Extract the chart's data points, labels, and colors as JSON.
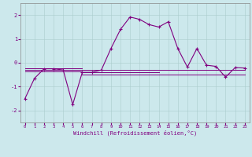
{
  "xlabel": "Windchill (Refroidissement éolien,°C)",
  "background_color": "#cce8ec",
  "line_color": "#800080",
  "grid_color": "#aacccc",
  "xlim": [
    -0.5,
    23.5
  ],
  "ylim": [
    -2.5,
    2.5
  ],
  "yticks": [
    -2,
    -1,
    0,
    1,
    2
  ],
  "xticks": [
    0,
    1,
    2,
    3,
    4,
    5,
    6,
    7,
    8,
    9,
    10,
    11,
    12,
    13,
    14,
    15,
    16,
    17,
    18,
    19,
    20,
    21,
    22,
    23
  ],
  "main_x": [
    0,
    1,
    2,
    3,
    4,
    5,
    6,
    7,
    8,
    9,
    10,
    11,
    12,
    13,
    14,
    15,
    16,
    17,
    18,
    19,
    20,
    21,
    22,
    23
  ],
  "main_y": [
    -1.5,
    -0.65,
    -0.25,
    -0.25,
    -0.3,
    -1.75,
    -0.4,
    -0.4,
    -0.3,
    0.6,
    1.4,
    1.92,
    1.82,
    1.6,
    1.5,
    1.72,
    0.6,
    -0.18,
    0.6,
    -0.1,
    -0.15,
    -0.6,
    -0.2,
    -0.22
  ],
  "flat_lines": [
    {
      "x": [
        0,
        23
      ],
      "y": [
        -0.28,
        -0.28
      ]
    },
    {
      "x": [
        0,
        6
      ],
      "y": [
        -0.22,
        -0.22
      ]
    },
    {
      "x": [
        0,
        6
      ],
      "y": [
        -0.35,
        -0.35
      ]
    },
    {
      "x": [
        6,
        14
      ],
      "y": [
        -0.38,
        -0.38
      ]
    },
    {
      "x": [
        6,
        23
      ],
      "y": [
        -0.5,
        -0.5
      ]
    }
  ]
}
